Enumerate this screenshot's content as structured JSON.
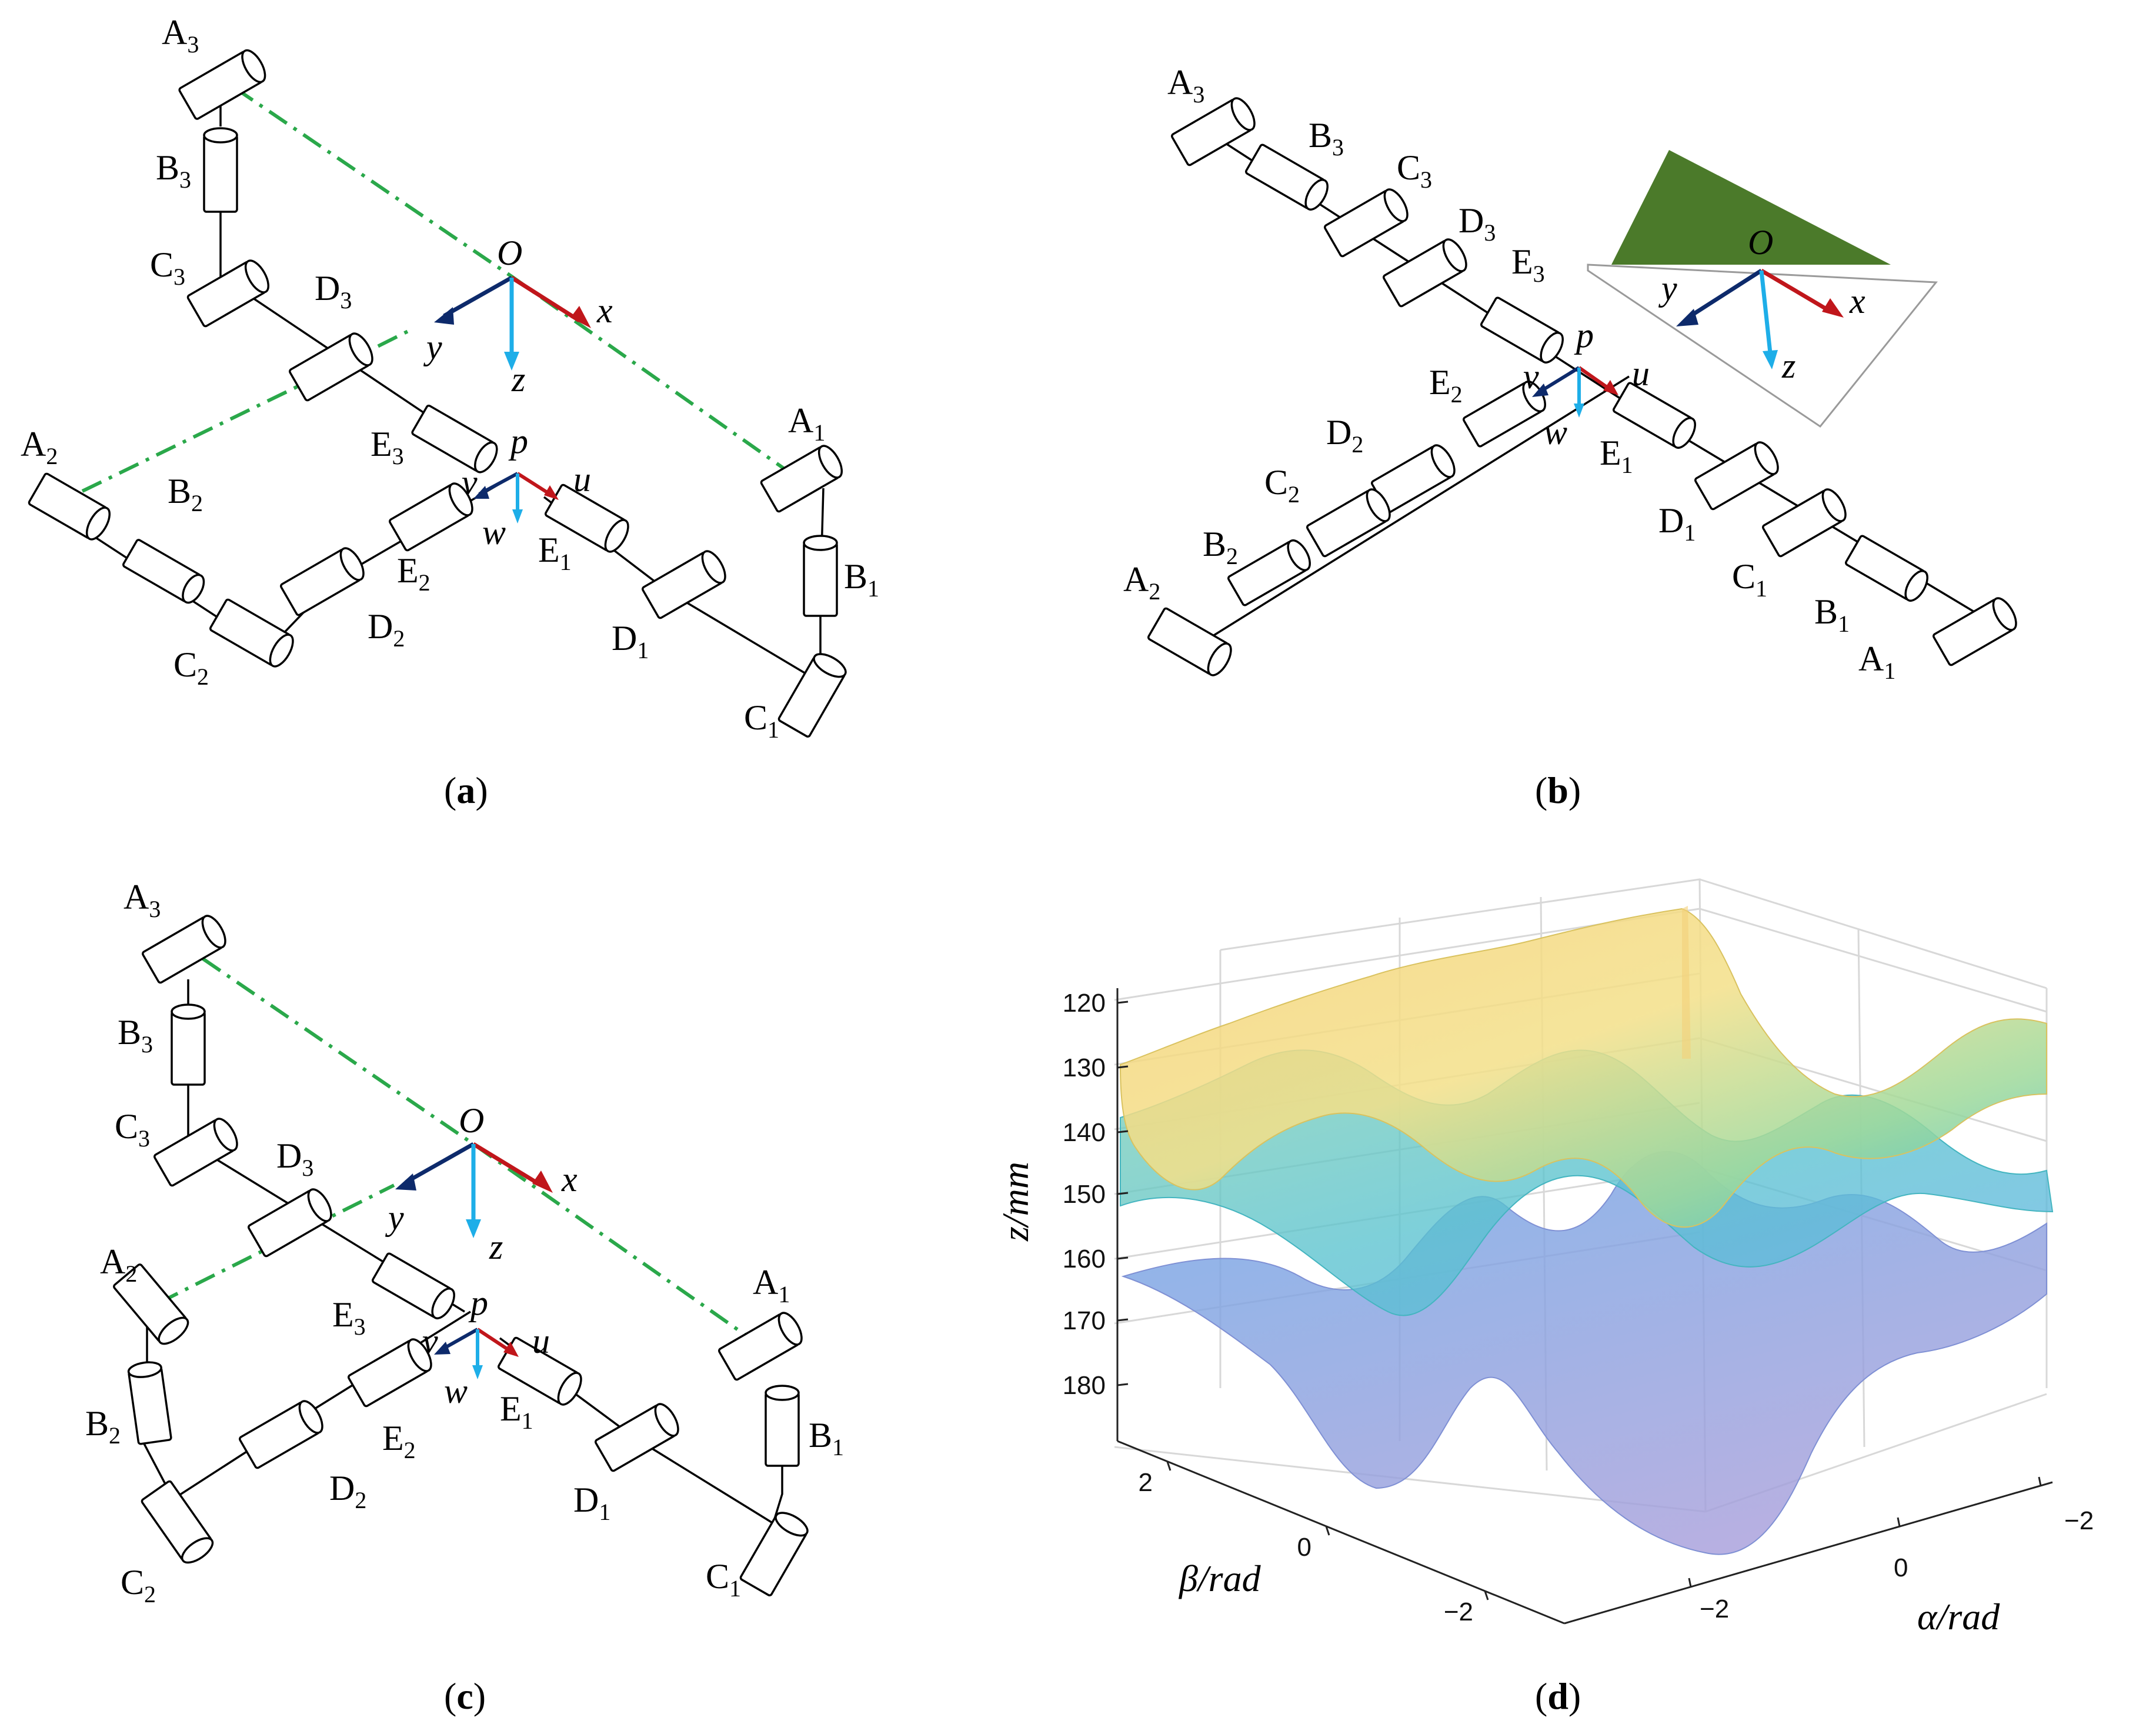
{
  "panels": [
    {
      "id": "a",
      "caption": "a"
    },
    {
      "id": "b",
      "caption": "b"
    },
    {
      "id": "c",
      "caption": "c"
    },
    {
      "id": "d",
      "caption": "d"
    }
  ],
  "frames": {
    "base": {
      "origin": "O",
      "x": "x",
      "y": "y",
      "z": "z"
    },
    "moving": {
      "origin": "p",
      "u": "u",
      "v": "v",
      "w": "w"
    }
  },
  "joints": {
    "A1": {
      "letter": "A",
      "index": "1"
    },
    "A2": {
      "letter": "A",
      "index": "2"
    },
    "A3": {
      "letter": "A",
      "index": "3"
    },
    "B1": {
      "letter": "B",
      "index": "1"
    },
    "B2": {
      "letter": "B",
      "index": "2"
    },
    "B3": {
      "letter": "B",
      "index": "3"
    },
    "C1": {
      "letter": "C",
      "index": "1"
    },
    "C2": {
      "letter": "C",
      "index": "2"
    },
    "C3": {
      "letter": "C",
      "index": "3"
    },
    "D1": {
      "letter": "D",
      "index": "1"
    },
    "D2": {
      "letter": "D",
      "index": "2"
    },
    "D3": {
      "letter": "D",
      "index": "3"
    },
    "E1": {
      "letter": "E",
      "index": "1"
    },
    "E2": {
      "letter": "E",
      "index": "2"
    },
    "E3": {
      "letter": "E",
      "index": "3"
    }
  },
  "colors": {
    "x_axis": "#c0161b",
    "y_axis": "#0d2a6b",
    "z_axis": "#1eaee8",
    "dash_line": "#2aa84a",
    "base_plate": "#4b7a2a"
  },
  "chart_data": {
    "type": "surface",
    "title": "",
    "xlabel": "α/rad",
    "ylabel": "β/rad",
    "zlabel": "z/mm",
    "x_ticks": [
      "−2",
      "0"
    ],
    "y_ticks": [
      "2",
      "0",
      "−2"
    ],
    "alpha_ticks": [
      "−2",
      "0",
      "−2"
    ],
    "z_ticks": [
      "120",
      "130",
      "140",
      "150",
      "160",
      "170",
      "180"
    ],
    "z_range": [
      115,
      185
    ],
    "series": [
      {
        "name": "upper surface",
        "z_range_approx": [
          120,
          150
        ]
      },
      {
        "name": "middle surface",
        "z_range_approx": [
          140,
          165
        ]
      },
      {
        "name": "lower surface",
        "z_range_approx": [
          160,
          185
        ]
      }
    ]
  }
}
